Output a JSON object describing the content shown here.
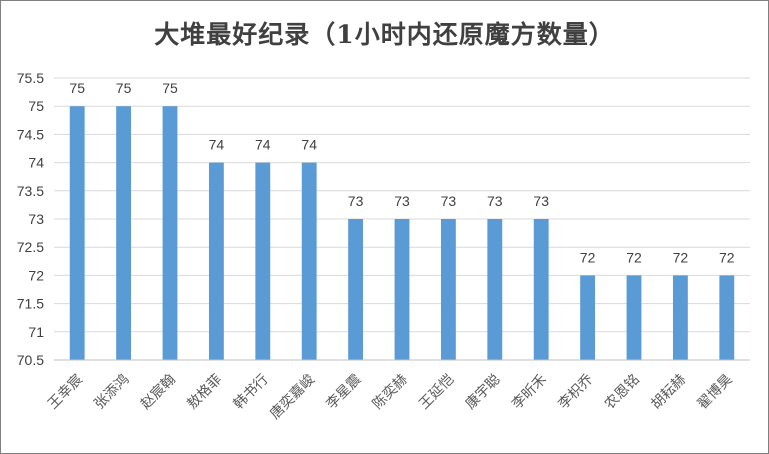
{
  "chart_data": {
    "type": "bar",
    "title": "大堆最好纪录（1小时内还原魔方数量）",
    "xlabel": "",
    "ylabel": "",
    "ylim": [
      70.5,
      75.5
    ],
    "yticks": [
      "70.5",
      "71",
      "71.5",
      "72",
      "72.5",
      "73",
      "73.5",
      "74",
      "74.5",
      "75",
      "75.5"
    ],
    "categories": [
      "王幸宸",
      "张添鸿",
      "赵宸翰",
      "敖格菲",
      "韩书行",
      "唐奕嘉峻",
      "李星震",
      "陈奕赫",
      "王延恺",
      "康宇聪",
      "李昕禾",
      "李枳乔",
      "农恩铭",
      "胡耘赫",
      "翟博昊"
    ],
    "values": [
      75,
      75,
      75,
      74,
      74,
      74,
      73,
      73,
      73,
      73,
      73,
      72,
      72,
      72,
      72
    ],
    "grid": true,
    "legend": "none",
    "bar_color": "#5b9bd5"
  }
}
